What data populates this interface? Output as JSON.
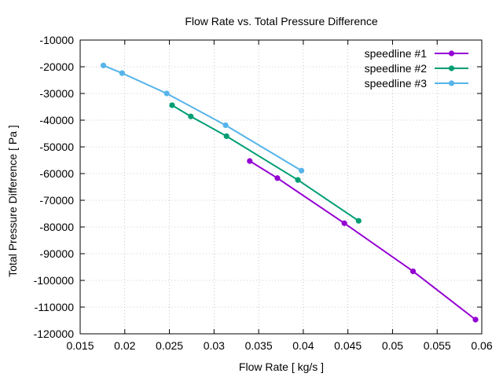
{
  "chart_data": {
    "type": "line",
    "title": "Flow Rate vs. Total Pressure Difference",
    "xlabel": "Flow Rate [ kg/s ]",
    "ylabel": "Total Pressure Difference [ Pa ]",
    "xlim": [
      0.015,
      0.06
    ],
    "ylim": [
      -120000,
      -10000
    ],
    "xticks": [
      0.015,
      0.02,
      0.025,
      0.03,
      0.035,
      0.04,
      0.045,
      0.05,
      0.055,
      0.06
    ],
    "xtick_labels": [
      "0.015",
      "0.02",
      "0.025",
      "0.03",
      "0.035",
      "0.04",
      "0.045",
      "0.05",
      "0.055",
      "0.06"
    ],
    "yticks": [
      -10000,
      -20000,
      -30000,
      -40000,
      -50000,
      -60000,
      -70000,
      -80000,
      -90000,
      -100000,
      -110000,
      -120000
    ],
    "ytick_labels": [
      "-10000",
      "-20000",
      "-30000",
      "-40000",
      "-50000",
      "-60000",
      "-70000",
      "-80000",
      "-90000",
      "-100000",
      "-110000",
      "-120000"
    ],
    "grid": true,
    "legend_position": "top-right",
    "series": [
      {
        "name": "speedline #1",
        "color": "#9400d3",
        "x": [
          0.034,
          0.0371,
          0.0446,
          0.0523,
          0.0593
        ],
        "y": [
          -55300,
          -61700,
          -78600,
          -96600,
          -114700
        ]
      },
      {
        "name": "speedline #2",
        "color": "#009e73",
        "x": [
          0.0253,
          0.0274,
          0.0314,
          0.0394,
          0.0462
        ],
        "y": [
          -34400,
          -38600,
          -46000,
          -62400,
          -77700
        ]
      },
      {
        "name": "speedline #3",
        "color": "#56b4e9",
        "x": [
          0.0176,
          0.0197,
          0.0247,
          0.0313,
          0.0398
        ],
        "y": [
          -19500,
          -22400,
          -30000,
          -41900,
          -58900
        ]
      }
    ]
  }
}
